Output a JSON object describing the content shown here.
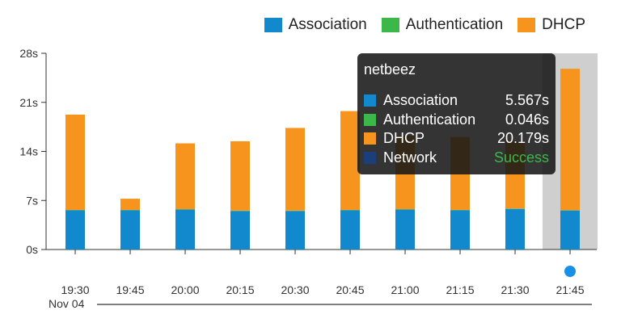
{
  "legend": [
    {
      "label": "Association",
      "color": "#1288cd"
    },
    {
      "label": "Authentication",
      "color": "#3cb84a"
    },
    {
      "label": "DHCP",
      "color": "#f7941d"
    }
  ],
  "tooltip": {
    "title": "netbeez",
    "rows": [
      {
        "label": "Association",
        "value": "5.567s",
        "color": "#1288cd",
        "value_color": "#ffffff"
      },
      {
        "label": "Authentication",
        "value": "0.046s",
        "color": "#3cb84a",
        "value_color": "#ffffff"
      },
      {
        "label": "DHCP",
        "value": "20.179s",
        "color": "#f7941d",
        "value_color": "#ffffff"
      },
      {
        "label": "Network",
        "value": "Success",
        "color": "#1a3f7a",
        "value_color": "#3cb84a"
      }
    ]
  },
  "navigator": {
    "date_label": "Nov 04"
  },
  "chart_data": {
    "type": "bar",
    "stacked": true,
    "categories": [
      "19:30",
      "19:45",
      "20:00",
      "20:15",
      "20:30",
      "20:45",
      "21:00",
      "21:15",
      "21:30",
      "21:45"
    ],
    "series": [
      {
        "name": "Association",
        "color": "#1288cd",
        "values": [
          5.6,
          5.6,
          5.7,
          5.5,
          5.5,
          5.6,
          5.7,
          5.6,
          5.8,
          5.567
        ]
      },
      {
        "name": "Authentication",
        "color": "#3cb84a",
        "values": [
          0.05,
          0.05,
          0.05,
          0.05,
          0.05,
          0.05,
          0.05,
          0.05,
          0.05,
          0.046
        ]
      },
      {
        "name": "DHCP",
        "color": "#f7941d",
        "values": [
          13.6,
          1.6,
          9.4,
          9.9,
          11.8,
          14.1,
          10.5,
          10.4,
          9.6,
          20.179
        ]
      }
    ],
    "yticks": [
      "0s",
      "7s",
      "14s",
      "21s",
      "28s"
    ],
    "ylim": [
      0,
      28
    ],
    "highlighted_category": "21:45",
    "legend_position": "top-right"
  }
}
